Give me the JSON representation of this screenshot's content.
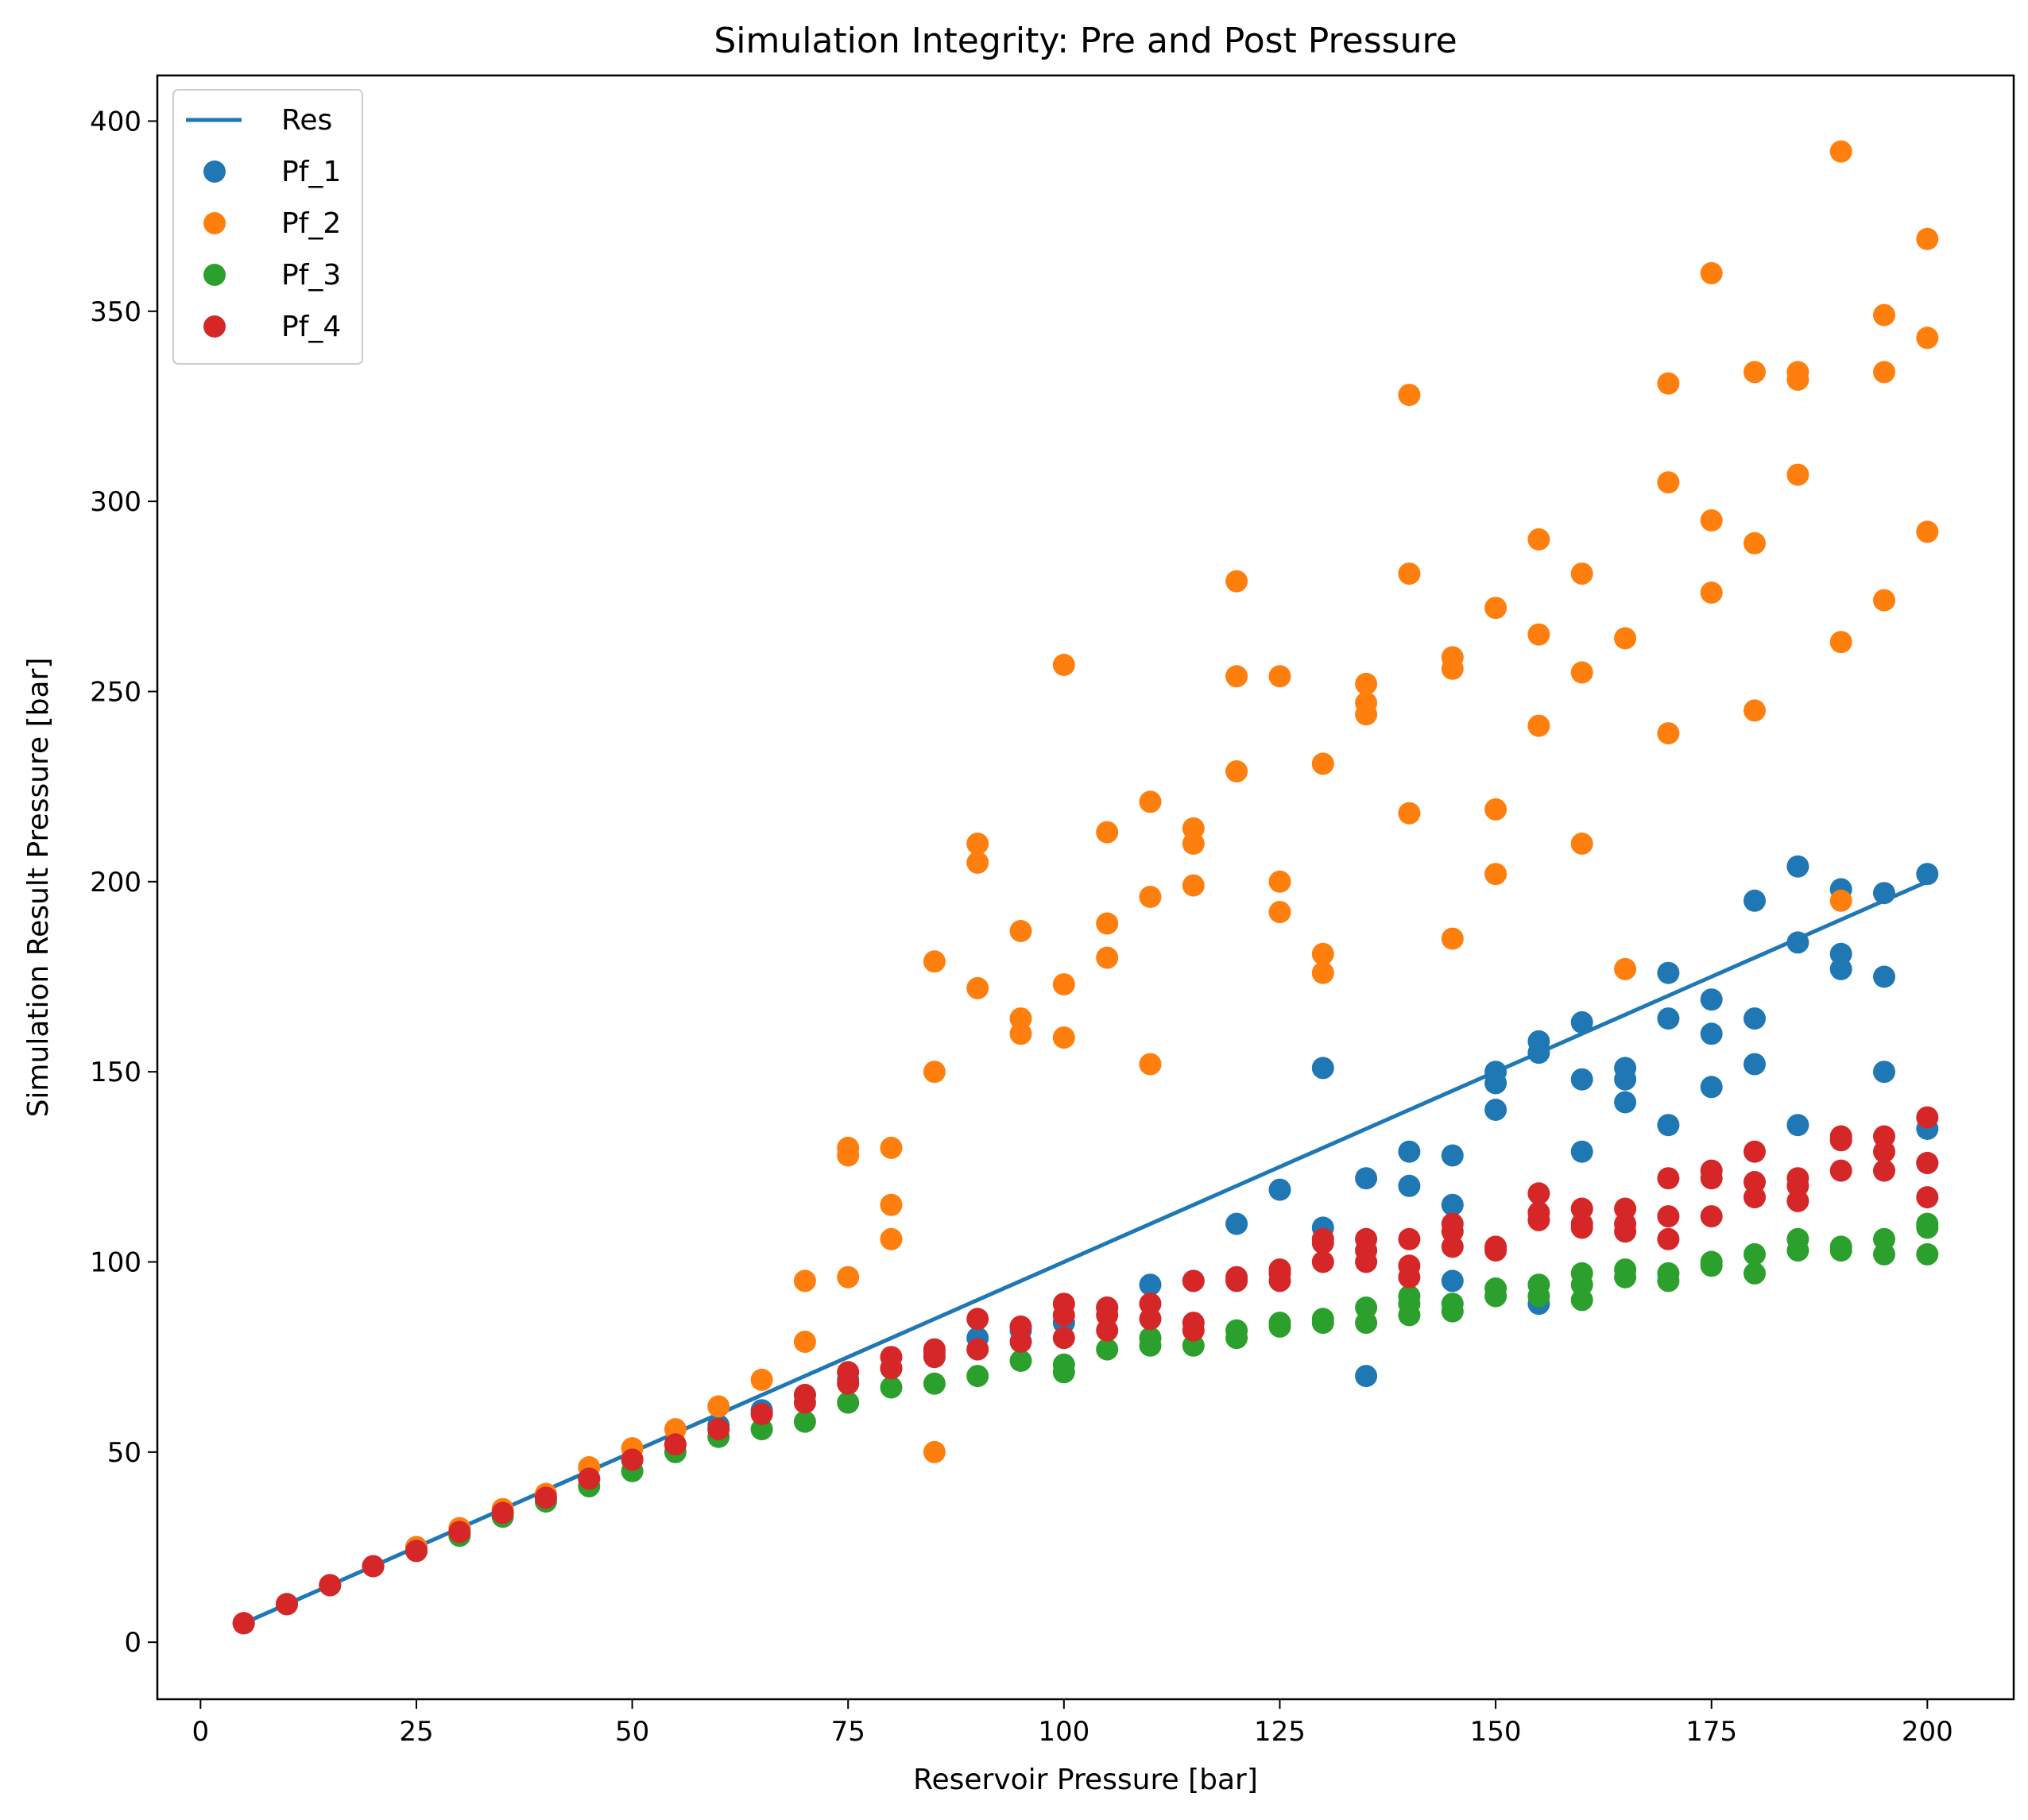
{
  "chart_data": {
    "type": "scatter",
    "title": "Simulation Integrity: Pre and Post Pressure",
    "xlabel": "Reservoir Pressure [bar]",
    "ylabel": "Simulation Result Pressure [bar]",
    "xlim": [
      -5,
      210
    ],
    "ylim": [
      -15,
      412
    ],
    "xticks": [
      0,
      25,
      50,
      75,
      100,
      125,
      150,
      175,
      200
    ],
    "yticks": [
      0,
      50,
      100,
      150,
      200,
      250,
      300,
      350,
      400
    ],
    "grid": false,
    "legend_position": "upper-left",
    "colors": {
      "Res": "#1f77b4",
      "Pf_1": "#1f77b4",
      "Pf_2": "#ff7f0e",
      "Pf_3": "#2ca02c",
      "Pf_4": "#d62728"
    },
    "series": [
      {
        "name": "Res",
        "kind": "line",
        "points": [
          [
            5,
            5
          ],
          [
            200,
            200
          ]
        ]
      },
      {
        "name": "Pf_1",
        "kind": "scatter",
        "points": [
          [
            5,
            5
          ],
          [
            10,
            10
          ],
          [
            15,
            15
          ],
          [
            20,
            20
          ],
          [
            25,
            25
          ],
          [
            30,
            29
          ],
          [
            35,
            34
          ],
          [
            40,
            38
          ],
          [
            45,
            43
          ],
          [
            50,
            48
          ],
          [
            55,
            52
          ],
          [
            60,
            57
          ],
          [
            65,
            61
          ],
          [
            70,
            65
          ],
          [
            75,
            69
          ],
          [
            80,
            72
          ],
          [
            85,
            76
          ],
          [
            90,
            80
          ],
          [
            95,
            82
          ],
          [
            100,
            84
          ],
          [
            105,
            88
          ],
          [
            110,
            94
          ],
          [
            115,
            95
          ],
          [
            120,
            110
          ],
          [
            125,
            119
          ],
          [
            130,
            151
          ],
          [
            130,
            109
          ],
          [
            135,
            122
          ],
          [
            135,
            70
          ],
          [
            140,
            129
          ],
          [
            140,
            120
          ],
          [
            145,
            128
          ],
          [
            145,
            115
          ],
          [
            145,
            95
          ],
          [
            150,
            150
          ],
          [
            150,
            147
          ],
          [
            150,
            140
          ],
          [
            155,
            158
          ],
          [
            155,
            155
          ],
          [
            155,
            89
          ],
          [
            160,
            163
          ],
          [
            160,
            148
          ],
          [
            160,
            129
          ],
          [
            165,
            151
          ],
          [
            165,
            148
          ],
          [
            165,
            142
          ],
          [
            170,
            176
          ],
          [
            170,
            164
          ],
          [
            170,
            136
          ],
          [
            175,
            169
          ],
          [
            175,
            160
          ],
          [
            175,
            146
          ],
          [
            180,
            195
          ],
          [
            180,
            164
          ],
          [
            180,
            152
          ],
          [
            185,
            204
          ],
          [
            185,
            184
          ],
          [
            185,
            136
          ],
          [
            190,
            198
          ],
          [
            190,
            181
          ],
          [
            190,
            177
          ],
          [
            195,
            197
          ],
          [
            195,
            175
          ],
          [
            195,
            150
          ],
          [
            200,
            202
          ],
          [
            200,
            135
          ],
          [
            200,
            126
          ]
        ]
      },
      {
        "name": "Pf_2",
        "kind": "scatter",
        "points": [
          [
            5,
            5
          ],
          [
            10,
            10
          ],
          [
            15,
            15
          ],
          [
            20,
            20
          ],
          [
            25,
            25
          ],
          [
            30,
            30
          ],
          [
            35,
            35
          ],
          [
            40,
            39
          ],
          [
            45,
            46
          ],
          [
            50,
            51
          ],
          [
            55,
            56
          ],
          [
            60,
            62
          ],
          [
            65,
            69
          ],
          [
            70,
            95
          ],
          [
            70,
            79
          ],
          [
            75,
            130
          ],
          [
            75,
            128
          ],
          [
            75,
            96
          ],
          [
            80,
            130
          ],
          [
            80,
            115
          ],
          [
            80,
            106
          ],
          [
            85,
            179
          ],
          [
            85,
            150
          ],
          [
            85,
            50
          ],
          [
            90,
            210
          ],
          [
            90,
            205
          ],
          [
            90,
            172
          ],
          [
            95,
            187
          ],
          [
            95,
            164
          ],
          [
            95,
            160
          ],
          [
            100,
            257
          ],
          [
            100,
            173
          ],
          [
            100,
            159
          ],
          [
            105,
            213
          ],
          [
            105,
            189
          ],
          [
            105,
            180
          ],
          [
            110,
            221
          ],
          [
            110,
            196
          ],
          [
            110,
            152
          ],
          [
            115,
            214
          ],
          [
            115,
            210
          ],
          [
            115,
            199
          ],
          [
            120,
            279
          ],
          [
            120,
            254
          ],
          [
            120,
            229
          ],
          [
            125,
            254
          ],
          [
            125,
            200
          ],
          [
            125,
            192
          ],
          [
            130,
            231
          ],
          [
            130,
            181
          ],
          [
            130,
            176
          ],
          [
            135,
            252
          ],
          [
            135,
            247
          ],
          [
            135,
            244
          ],
          [
            140,
            328
          ],
          [
            140,
            281
          ],
          [
            140,
            218
          ],
          [
            145,
            259
          ],
          [
            145,
            256
          ],
          [
            145,
            185
          ],
          [
            150,
            272
          ],
          [
            150,
            219
          ],
          [
            150,
            202
          ],
          [
            155,
            290
          ],
          [
            155,
            265
          ],
          [
            155,
            241
          ],
          [
            160,
            281
          ],
          [
            160,
            255
          ],
          [
            160,
            210
          ],
          [
            165,
            264
          ],
          [
            165,
            177
          ],
          [
            170,
            331
          ],
          [
            170,
            305
          ],
          [
            170,
            239
          ],
          [
            175,
            360
          ],
          [
            175,
            295
          ],
          [
            175,
            276
          ],
          [
            180,
            334
          ],
          [
            180,
            289
          ],
          [
            180,
            245
          ],
          [
            185,
            334
          ],
          [
            185,
            332
          ],
          [
            185,
            307
          ],
          [
            190,
            392
          ],
          [
            190,
            263
          ],
          [
            190,
            195
          ],
          [
            195,
            349
          ],
          [
            195,
            334
          ],
          [
            195,
            274
          ],
          [
            200,
            369
          ],
          [
            200,
            343
          ],
          [
            200,
            292
          ]
        ]
      },
      {
        "name": "Pf_3",
        "kind": "scatter",
        "points": [
          [
            5,
            5
          ],
          [
            10,
            10
          ],
          [
            15,
            15
          ],
          [
            20,
            20
          ],
          [
            25,
            24
          ],
          [
            30,
            28
          ],
          [
            35,
            33
          ],
          [
            40,
            37
          ],
          [
            45,
            41
          ],
          [
            50,
            45
          ],
          [
            55,
            50
          ],
          [
            60,
            54
          ],
          [
            65,
            56
          ],
          [
            70,
            58
          ],
          [
            75,
            63
          ],
          [
            80,
            67
          ],
          [
            85,
            68
          ],
          [
            90,
            70
          ],
          [
            95,
            74
          ],
          [
            100,
            71
          ],
          [
            100,
            73
          ],
          [
            105,
            77
          ],
          [
            110,
            78
          ],
          [
            110,
            80
          ],
          [
            115,
            78
          ],
          [
            120,
            80
          ],
          [
            120,
            82
          ],
          [
            125,
            83
          ],
          [
            125,
            84
          ],
          [
            130,
            84
          ],
          [
            130,
            85
          ],
          [
            135,
            84
          ],
          [
            135,
            88
          ],
          [
            140,
            86
          ],
          [
            140,
            89
          ],
          [
            140,
            91
          ],
          [
            145,
            87
          ],
          [
            145,
            89
          ],
          [
            150,
            91
          ],
          [
            150,
            93
          ],
          [
            155,
            91
          ],
          [
            155,
            94
          ],
          [
            160,
            90
          ],
          [
            160,
            94
          ],
          [
            160,
            97
          ],
          [
            165,
            96
          ],
          [
            165,
            98
          ],
          [
            170,
            95
          ],
          [
            170,
            97
          ],
          [
            175,
            99
          ],
          [
            175,
            100
          ],
          [
            180,
            97
          ],
          [
            180,
            102
          ],
          [
            185,
            103
          ],
          [
            185,
            106
          ],
          [
            190,
            103
          ],
          [
            190,
            104
          ],
          [
            195,
            102
          ],
          [
            195,
            106
          ],
          [
            200,
            102
          ],
          [
            200,
            109
          ],
          [
            200,
            110
          ]
        ]
      },
      {
        "name": "Pf_4",
        "kind": "scatter",
        "points": [
          [
            5,
            5
          ],
          [
            10,
            10
          ],
          [
            15,
            15
          ],
          [
            20,
            20
          ],
          [
            25,
            24
          ],
          [
            30,
            29
          ],
          [
            35,
            34
          ],
          [
            40,
            38
          ],
          [
            45,
            43
          ],
          [
            50,
            48
          ],
          [
            55,
            52
          ],
          [
            60,
            56
          ],
          [
            65,
            60
          ],
          [
            70,
            63
          ],
          [
            70,
            65
          ],
          [
            75,
            68
          ],
          [
            75,
            71
          ],
          [
            80,
            72
          ],
          [
            80,
            75
          ],
          [
            85,
            75
          ],
          [
            85,
            77
          ],
          [
            90,
            77
          ],
          [
            90,
            85
          ],
          [
            95,
            79
          ],
          [
            95,
            83
          ],
          [
            100,
            80
          ],
          [
            100,
            86
          ],
          [
            100,
            89
          ],
          [
            105,
            82
          ],
          [
            105,
            86
          ],
          [
            105,
            88
          ],
          [
            110,
            85
          ],
          [
            110,
            89
          ],
          [
            115,
            82
          ],
          [
            115,
            84
          ],
          [
            115,
            95
          ],
          [
            120,
            95
          ],
          [
            120,
            96
          ],
          [
            125,
            95
          ],
          [
            125,
            97
          ],
          [
            125,
            98
          ],
          [
            130,
            100
          ],
          [
            130,
            105
          ],
          [
            130,
            106
          ],
          [
            135,
            100
          ],
          [
            135,
            103
          ],
          [
            135,
            106
          ],
          [
            140,
            96
          ],
          [
            140,
            99
          ],
          [
            140,
            106
          ],
          [
            145,
            104
          ],
          [
            145,
            108
          ],
          [
            145,
            110
          ],
          [
            150,
            103
          ],
          [
            150,
            104
          ],
          [
            155,
            111
          ],
          [
            155,
            113
          ],
          [
            155,
            118
          ],
          [
            160,
            109
          ],
          [
            160,
            110
          ],
          [
            160,
            114
          ],
          [
            165,
            108
          ],
          [
            165,
            110
          ],
          [
            165,
            114
          ],
          [
            170,
            106
          ],
          [
            170,
            112
          ],
          [
            170,
            122
          ],
          [
            175,
            112
          ],
          [
            175,
            122
          ],
          [
            175,
            124
          ],
          [
            180,
            117
          ],
          [
            180,
            121
          ],
          [
            180,
            129
          ],
          [
            185,
            116
          ],
          [
            185,
            120
          ],
          [
            185,
            122
          ],
          [
            190,
            124
          ],
          [
            190,
            132
          ],
          [
            190,
            133
          ],
          [
            195,
            124
          ],
          [
            195,
            129
          ],
          [
            195,
            133
          ],
          [
            200,
            117
          ],
          [
            200,
            126
          ],
          [
            200,
            138
          ]
        ]
      }
    ]
  }
}
